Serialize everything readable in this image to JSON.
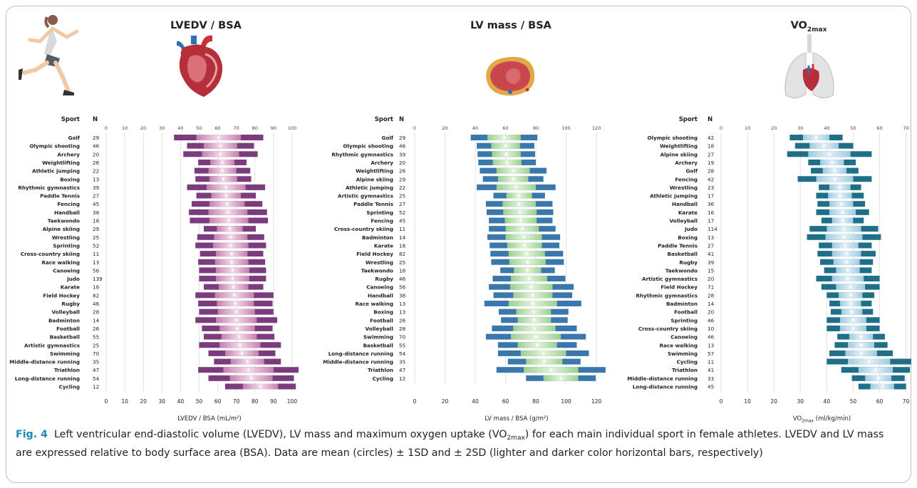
{
  "caption": {
    "label": "Fig. 4",
    "text_before_vo": "Left ventricular end-diastolic volume (LVEDV), LV mass and maximum oxygen uptake (VO",
    "vo_sub": "2max",
    "text_after_vo": ") for each main individual sport in female athletes. LVEDV and LV mass are expressed relative to body surface area (BSA). Data are mean (circles) ± 1SD and ± 2SD (lighter and darker color horizontal bars, respectively)"
  },
  "icons": [
    "runner-icon",
    "heart-icon",
    "lv-cross-section-icon",
    "lungs-icon"
  ],
  "colors": {
    "lvedv": {
      "dark": "#7b3c7d",
      "light": "#c47fae",
      "center": "#f0d5e6"
    },
    "lvmass": {
      "dark": "#3a77ad",
      "light": "#a6d49b",
      "center": "#dff1d6"
    },
    "vo2": {
      "dark": "#1e6f87",
      "light": "#a6cfe0",
      "center": "#e0eff6"
    }
  },
  "chart_data": [
    {
      "type": "bar",
      "title": "LVEDV / BSA",
      "xlabel": "LVEDV / BSA (mL/m²)",
      "column_headers": [
        "Sport",
        "N"
      ],
      "xlim": [
        0,
        105
      ],
      "xticks": [
        0,
        10,
        20,
        30,
        40,
        50,
        60,
        70,
        80,
        90,
        100
      ],
      "sports": [
        {
          "name": "Golf",
          "n": 29,
          "mean": 60.5,
          "sd": 12
        },
        {
          "name": "Olympic shooting",
          "n": 46,
          "mean": 61.5,
          "sd": 9
        },
        {
          "name": "Archery",
          "n": 20,
          "mean": 61.5,
          "sd": 10
        },
        {
          "name": "Weightlifting",
          "n": 26,
          "mean": 62.5,
          "sd": 6.5
        },
        {
          "name": "Athletic jumping",
          "n": 22,
          "mean": 62.5,
          "sd": 7.5
        },
        {
          "name": "Boxing",
          "n": 13,
          "mean": 63,
          "sd": 7.5
        },
        {
          "name": "Rhythmic gymnastics",
          "n": 39,
          "mean": 64.5,
          "sd": 10.5
        },
        {
          "name": "Paddle Tennis",
          "n": 27,
          "mean": 64.5,
          "sd": 8
        },
        {
          "name": "Fencing",
          "n": 45,
          "mean": 65,
          "sd": 9.5
        },
        {
          "name": "Handball",
          "n": 38,
          "mean": 65.5,
          "sd": 10.5
        },
        {
          "name": "Taekwondo",
          "n": 18,
          "mean": 66,
          "sd": 10.5
        },
        {
          "name": "Alpine skiing",
          "n": 29,
          "mean": 66.5,
          "sd": 7
        },
        {
          "name": "Wrestling",
          "n": 25,
          "mean": 67,
          "sd": 9
        },
        {
          "name": "Sprinting",
          "n": 52,
          "mean": 67,
          "sd": 9.5
        },
        {
          "name": "Cross-country skiing",
          "n": 11,
          "mean": 67.5,
          "sd": 8.5
        },
        {
          "name": "Race walking",
          "n": 13,
          "mean": 67.5,
          "sd": 9
        },
        {
          "name": "Canoeing",
          "n": 56,
          "mean": 68,
          "sd": 9
        },
        {
          "name": "Judo",
          "n": 139,
          "mean": 68,
          "sd": 9
        },
        {
          "name": "Karate",
          "n": 18,
          "mean": 68.5,
          "sd": 8
        },
        {
          "name": "Field Hockey",
          "n": 82,
          "mean": 69,
          "sd": 10.5
        },
        {
          "name": "Rugby",
          "n": 46,
          "mean": 69.5,
          "sd": 10
        },
        {
          "name": "Volleyball",
          "n": 28,
          "mean": 70,
          "sd": 10
        },
        {
          "name": "Badminton",
          "n": 14,
          "mean": 70,
          "sd": 11
        },
        {
          "name": "Football",
          "n": 26,
          "mean": 70.5,
          "sd": 9.5
        },
        {
          "name": "Basketball",
          "n": 55,
          "mean": 71.5,
          "sd": 9.5
        },
        {
          "name": "Artistic gymnastics",
          "n": 25,
          "mean": 72,
          "sd": 11
        },
        {
          "name": "Swimming",
          "n": 70,
          "mean": 73,
          "sd": 9
        },
        {
          "name": "Middle-distance running",
          "n": 35,
          "mean": 76,
          "sd": 9
        },
        {
          "name": "Triathlon",
          "n": 47,
          "mean": 76.5,
          "sd": 13.5
        },
        {
          "name": "Long-distance running",
          "n": 54,
          "mean": 78,
          "sd": 11.5
        },
        {
          "name": "Cycling",
          "n": 12,
          "mean": 83,
          "sd": 9.5
        }
      ]
    },
    {
      "type": "bar",
      "title": "LV mass / BSA",
      "xlabel": "LV mass / BSA (g/m²)",
      "column_headers": [
        "Sport",
        "N"
      ],
      "xlim": [
        0,
        127
      ],
      "xticks": [
        0,
        20,
        40,
        60,
        80,
        100,
        120
      ],
      "sports": [
        {
          "name": "Golf",
          "n": 29,
          "mean": 59,
          "sd": 11
        },
        {
          "name": "Olympic shooting",
          "n": 46,
          "mean": 60,
          "sd": 9.5
        },
        {
          "name": "Rhythmic gymnastics",
          "n": 39,
          "mean": 60.5,
          "sd": 9.5
        },
        {
          "name": "Archery",
          "n": 20,
          "mean": 61,
          "sd": 9.5
        },
        {
          "name": "Weightlifting",
          "n": 26,
          "mean": 65,
          "sd": 11
        },
        {
          "name": "Alpine skiing",
          "n": 29,
          "mean": 65,
          "sd": 10
        },
        {
          "name": "Athletic jumping",
          "n": 22,
          "mean": 67,
          "sd": 13
        },
        {
          "name": "Artistic gymnastics",
          "n": 25,
          "mean": 69,
          "sd": 8.5
        },
        {
          "name": "Paddle Tennis",
          "n": 27,
          "mean": 69,
          "sd": 11
        },
        {
          "name": "Sprinting",
          "n": 52,
          "mean": 69.5,
          "sd": 11
        },
        {
          "name": "Fencing",
          "n": 45,
          "mean": 70,
          "sd": 10.5
        },
        {
          "name": "Cross-country skiing",
          "n": 11,
          "mean": 71,
          "sd": 11
        },
        {
          "name": "Badminton",
          "n": 14,
          "mean": 72,
          "sd": 12
        },
        {
          "name": "Karate",
          "n": 18,
          "mean": 72.5,
          "sd": 11.5
        },
        {
          "name": "Field Hockey",
          "n": 82,
          "mean": 74,
          "sd": 12
        },
        {
          "name": "Wrestling",
          "n": 25,
          "mean": 74.5,
          "sd": 12
        },
        {
          "name": "Taekwondo",
          "n": 18,
          "mean": 74.5,
          "sd": 9
        },
        {
          "name": "Rugby",
          "n": 46,
          "mean": 75.5,
          "sd": 12
        },
        {
          "name": "Canoeing",
          "n": 56,
          "mean": 77,
          "sd": 14
        },
        {
          "name": "Handball",
          "n": 38,
          "mean": 78,
          "sd": 13
        },
        {
          "name": "Race walking",
          "n": 13,
          "mean": 78,
          "sd": 16
        },
        {
          "name": "Boxing",
          "n": 13,
          "mean": 78.5,
          "sd": 11.5
        },
        {
          "name": "Football",
          "n": 26,
          "mean": 79,
          "sd": 11
        },
        {
          "name": "Volleyball",
          "n": 28,
          "mean": 79,
          "sd": 14
        },
        {
          "name": "Swimming",
          "n": 70,
          "mean": 80,
          "sd": 16.5
        },
        {
          "name": "Basketball",
          "n": 55,
          "mean": 81,
          "sd": 13
        },
        {
          "name": "Long-distance running",
          "n": 54,
          "mean": 85,
          "sd": 15
        },
        {
          "name": "Middle-distance running",
          "n": 35,
          "mean": 85.5,
          "sd": 12
        },
        {
          "name": "Triathlon",
          "n": 47,
          "mean": 90,
          "sd": 18
        },
        {
          "name": "Cycling",
          "n": 12,
          "mean": 96.5,
          "sd": 11.5
        }
      ]
    },
    {
      "type": "bar",
      "title": "VO",
      "title_sub": "2max",
      "xlabel": "VO",
      "xlabel_sub": "2max",
      "xlabel_rest": " (ml/kg/min)",
      "column_headers": [
        "Sport",
        "N"
      ],
      "xlim": [
        0,
        72
      ],
      "xticks": [
        0,
        10,
        20,
        30,
        40,
        50,
        60,
        70
      ],
      "sports": [
        {
          "name": "Olympic shooting",
          "n": 42,
          "mean": 36,
          "sd": 5
        },
        {
          "name": "Weightlifting",
          "n": 18,
          "mean": 39,
          "sd": 5.5
        },
        {
          "name": "Alpine skiing",
          "n": 27,
          "mean": 41,
          "sd": 8
        },
        {
          "name": "Archery",
          "n": 19,
          "mean": 42,
          "sd": 4.5
        },
        {
          "name": "Golf",
          "n": 28,
          "mean": 43,
          "sd": 4.5
        },
        {
          "name": "Fencing",
          "n": 42,
          "mean": 43,
          "sd": 7
        },
        {
          "name": "Wrestling",
          "n": 23,
          "mean": 45,
          "sd": 4
        },
        {
          "name": "Athletic jumping",
          "n": 17,
          "mean": 45,
          "sd": 4.5
        },
        {
          "name": "Handball",
          "n": 36,
          "mean": 45.5,
          "sd": 4.5
        },
        {
          "name": "Karate",
          "n": 16,
          "mean": 46,
          "sd": 5
        },
        {
          "name": "Volleyball",
          "n": 17,
          "mean": 46,
          "sd": 4
        },
        {
          "name": "Judo",
          "n": 114,
          "mean": 46.5,
          "sd": 6.5
        },
        {
          "name": "Boxing",
          "n": 13,
          "mean": 46.5,
          "sd": 7
        },
        {
          "name": "Paddle Tennis",
          "n": 27,
          "mean": 47,
          "sd": 5
        },
        {
          "name": "Basketball",
          "n": 41,
          "mean": 47.5,
          "sd": 5.5
        },
        {
          "name": "Rugby",
          "n": 39,
          "mean": 47.5,
          "sd": 5
        },
        {
          "name": "Taekwondo",
          "n": 15,
          "mean": 48,
          "sd": 4.5
        },
        {
          "name": "Artistic gymnastics",
          "n": 20,
          "mean": 48,
          "sd": 6
        },
        {
          "name": "Field Hockey",
          "n": 71,
          "mean": 49,
          "sd": 5.5
        },
        {
          "name": "Rhythmic gymnastics",
          "n": 28,
          "mean": 49,
          "sd": 4.5
        },
        {
          "name": "Badminton",
          "n": 14,
          "mean": 49,
          "sd": 4
        },
        {
          "name": "Football",
          "n": 20,
          "mean": 49.5,
          "sd": 4
        },
        {
          "name": "Sprinting",
          "n": 46,
          "mean": 50,
          "sd": 5
        },
        {
          "name": "Cross-country skiing",
          "n": 10,
          "mean": 50,
          "sd": 5
        },
        {
          "name": "Canoeing",
          "n": 46,
          "mean": 53,
          "sd": 4.5
        },
        {
          "name": "Race walking",
          "n": 13,
          "mean": 53,
          "sd": 5
        },
        {
          "name": "Swimming",
          "n": 57,
          "mean": 53,
          "sd": 6
        },
        {
          "name": "Cycling",
          "n": 11,
          "mean": 56,
          "sd": 8
        },
        {
          "name": "Triathlon",
          "n": 41,
          "mean": 58.5,
          "sd": 6.5
        },
        {
          "name": "Middle-distance running",
          "n": 33,
          "mean": 59.5,
          "sd": 5
        },
        {
          "name": "Long-distance running",
          "n": 45,
          "mean": 61,
          "sd": 4.5
        }
      ]
    }
  ]
}
